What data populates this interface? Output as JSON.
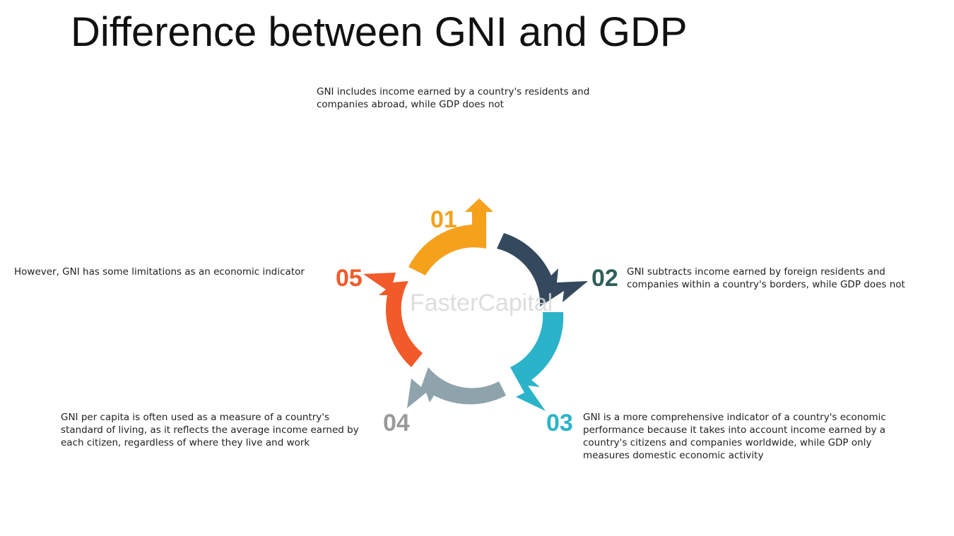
{
  "title": "Difference between GNI and GDP",
  "watermark": "FasterCapital",
  "items": [
    {
      "number": "01",
      "color": "#F5A11C",
      "text": "GNI includes income earned by a country's residents and companies abroad, while GDP does not"
    },
    {
      "number": "02",
      "color": "#34495E",
      "number_color": "#2F5F5A",
      "text": "GNI subtracts income earned by foreign residents and companies within a country's borders, while GDP does not"
    },
    {
      "number": "03",
      "color": "#2BB3C9",
      "text": "GNI is a more comprehensive indicator of a country's economic performance because it takes into account income earned by a country's citizens and companies worldwide, while GDP only measures domestic economic activity"
    },
    {
      "number": "04",
      "color": "#8FA3AC",
      "number_color": "#9A9A9A",
      "text": "GNI per capita is often used as a measure of a country's standard of living, as it reflects the average income earned by each citizen, regardless of where they live and work"
    },
    {
      "number": "05",
      "color": "#F15A29",
      "text": "However, GNI has some limitations as an economic indicator"
    }
  ]
}
